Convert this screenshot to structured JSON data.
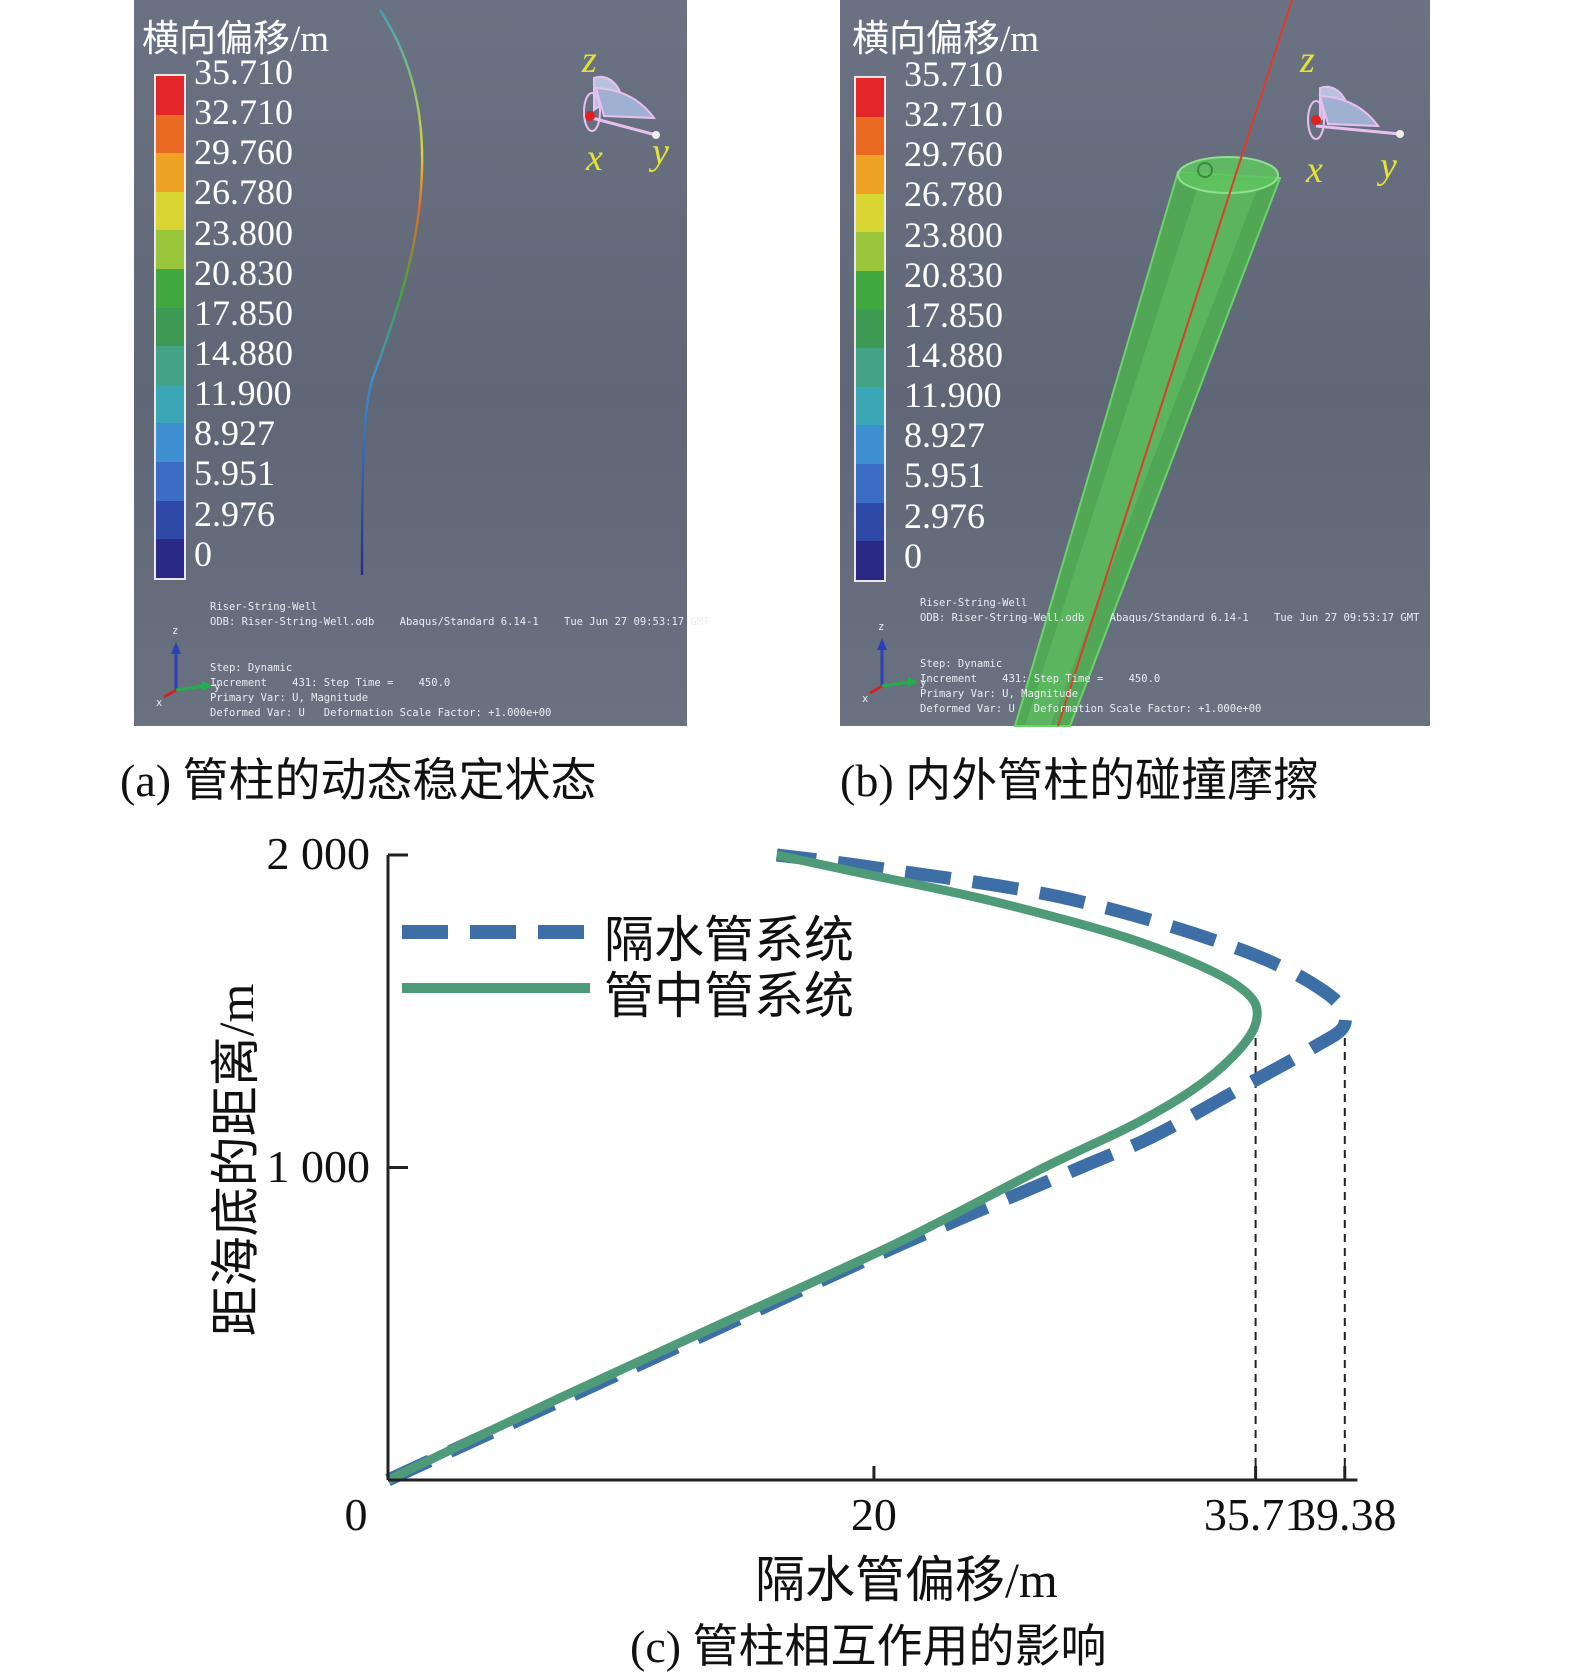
{
  "panel_a": {
    "legend_title": "横向偏移/m",
    "legend_values": [
      "35.710",
      "32.710",
      "29.760",
      "26.780",
      "23.800",
      "20.830",
      "17.850",
      "14.880",
      "11.900",
      "8.927",
      "5.951",
      "2.976",
      "0"
    ],
    "legend_colors": [
      "#e3262a",
      "#ea6a23",
      "#eea324",
      "#d9d634",
      "#98c53a",
      "#40a83e",
      "#3e9a52",
      "#44a386",
      "#3ba7b6",
      "#3f8fd3",
      "#3c6dc4",
      "#2f49a7",
      "#2a2a86"
    ],
    "triad_labels": {
      "z": "z",
      "x": "x",
      "y": "y"
    },
    "info_line1": "Riser-String-Well",
    "info_line2": "ODB: Riser-String-Well.odb    Abaqus/Standard 6.14-1    Tue Jun 27 09:53:17 GMT",
    "step_line": "Step: Dynamic",
    "increment_line": "Increment    431: Step Time =    450.0",
    "primary_line": "Primary Var: U, Magnitude",
    "deformed_line": "Deformed Var: U   Deformation Scale Factor: +1.000e+00",
    "mini_axis": {
      "z": "z",
      "x": "x",
      "y": "y"
    },
    "caption": "(a) 管柱的动态稳定状态"
  },
  "panel_b": {
    "legend_title": "横向偏移/m",
    "legend_values": [
      "35.710",
      "32.710",
      "29.760",
      "26.780",
      "23.800",
      "20.830",
      "17.850",
      "14.880",
      "11.900",
      "8.927",
      "5.951",
      "2.976",
      "0"
    ],
    "triad_labels": {
      "z": "z",
      "x": "x",
      "y": "y"
    },
    "info_line1": "Riser-String-Well",
    "info_line2": "ODB: Riser-String-Well.odb    Abaqus/Standard 6.14-1    Tue Jun 27 09:53:17 GMT",
    "step_line": "Step: Dynamic",
    "increment_line": "Increment    431: Step Time =    450.0",
    "primary_line": "Primary Var: U, Magnitude",
    "deformed_line": "Deformed Var: U   Deformation Scale Factor: +1.000e+00",
    "mini_axis": {
      "z": "z",
      "x": "x",
      "y": "y"
    },
    "caption": "(b) 内外管柱的碰撞摩擦"
  },
  "chart_data": {
    "type": "line",
    "xlabel": "隔水管偏移/m",
    "ylabel": "距海底的距离/m",
    "xlim": [
      0,
      40.5
    ],
    "ylim": [
      0,
      2000
    ],
    "x_ticks": [
      0,
      20,
      35.71,
      39.38
    ],
    "x_tick_labels": [
      "0",
      "20",
      "35.71",
      "39.38"
    ],
    "y_ticks": [
      1000,
      2000
    ],
    "y_tick_labels": [
      "1 000",
      "2 000"
    ],
    "legend_position": "top-left",
    "series": [
      {
        "name": "隔水管系统",
        "color": "#3d6fa6",
        "dash": true,
        "points": [
          [
            0,
            0
          ],
          [
            7,
            250
          ],
          [
            14,
            500
          ],
          [
            21,
            750
          ],
          [
            28.5,
            1000
          ],
          [
            31.5,
            1100
          ],
          [
            35,
            1250
          ],
          [
            38,
            1380
          ],
          [
            39.38,
            1460
          ],
          [
            38.6,
            1560
          ],
          [
            35,
            1700
          ],
          [
            28,
            1860
          ],
          [
            20,
            1960
          ],
          [
            16,
            2000
          ]
        ]
      },
      {
        "name": "管中管系统",
        "color": "#4f9a78",
        "dash": false,
        "points": [
          [
            0,
            0
          ],
          [
            7,
            260
          ],
          [
            14,
            510
          ],
          [
            21,
            760
          ],
          [
            27,
            1000
          ],
          [
            31,
            1150
          ],
          [
            34,
            1300
          ],
          [
            35.71,
            1460
          ],
          [
            35,
            1580
          ],
          [
            31,
            1720
          ],
          [
            25,
            1850
          ],
          [
            19,
            1950
          ],
          [
            16,
            2000
          ]
        ]
      }
    ],
    "reference_lines_x": [
      35.71,
      39.38
    ],
    "caption": "(c) 管柱相互作用的影响"
  }
}
